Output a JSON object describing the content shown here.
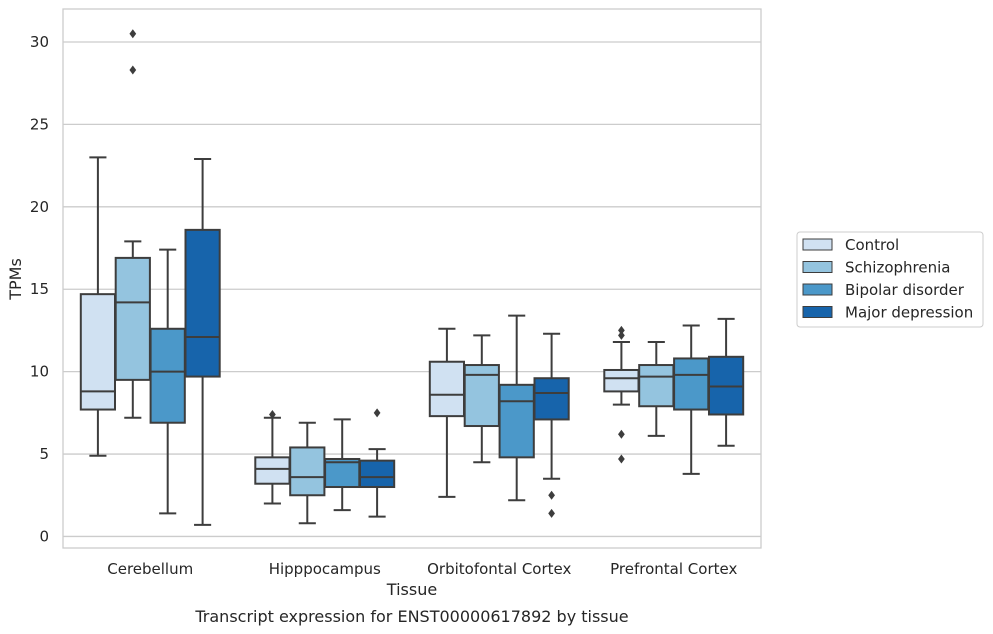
{
  "chart_data": {
    "type": "box",
    "title": "Transcript expression for ENST00000617892 by tissue",
    "xlabel": "Tissue",
    "ylabel": "TPMs",
    "ylim": [
      -0.7,
      32
    ],
    "yticks": [
      0,
      5,
      10,
      15,
      20,
      25,
      30
    ],
    "grid": true,
    "legend_position": "right",
    "categories": [
      "Cerebellum",
      "Hipppocampus",
      "Orbitofontal Cortex",
      "Prefrontal Cortex"
    ],
    "series": [
      {
        "name": "Control",
        "color": "#d0e1f2",
        "boxes": [
          {
            "whislo": 4.9,
            "q1": 7.7,
            "med": 8.8,
            "q3": 14.7,
            "whishi": 23.0,
            "fliers": []
          },
          {
            "whislo": 2.0,
            "q1": 3.2,
            "med": 4.1,
            "q3": 4.8,
            "whishi": 7.2,
            "fliers": [
              7.4
            ]
          },
          {
            "whislo": 2.4,
            "q1": 7.3,
            "med": 8.6,
            "q3": 10.6,
            "whishi": 12.6,
            "fliers": []
          },
          {
            "whislo": 8.0,
            "q1": 8.8,
            "med": 9.6,
            "q3": 10.1,
            "whishi": 11.8,
            "fliers": [
              12.2,
              12.5,
              6.2,
              4.7
            ]
          }
        ]
      },
      {
        "name": "Schizophrenia",
        "color": "#94c4df",
        "boxes": [
          {
            "whislo": 7.2,
            "q1": 9.5,
            "med": 14.2,
            "q3": 16.9,
            "whishi": 17.9,
            "fliers": [
              28.3,
              30.5
            ]
          },
          {
            "whislo": 0.8,
            "q1": 2.5,
            "med": 3.6,
            "q3": 5.4,
            "whishi": 6.9,
            "fliers": []
          },
          {
            "whislo": 4.5,
            "q1": 6.7,
            "med": 9.8,
            "q3": 10.4,
            "whishi": 12.2,
            "fliers": []
          },
          {
            "whislo": 6.1,
            "q1": 7.9,
            "med": 9.7,
            "q3": 10.4,
            "whishi": 11.8,
            "fliers": []
          }
        ]
      },
      {
        "name": "Bipolar disorder",
        "color": "#4b98c9",
        "boxes": [
          {
            "whislo": 1.4,
            "q1": 6.9,
            "med": 10.0,
            "q3": 12.6,
            "whishi": 17.4,
            "fliers": []
          },
          {
            "whislo": 1.6,
            "q1": 3.0,
            "med": 4.5,
            "q3": 4.7,
            "whishi": 7.1,
            "fliers": []
          },
          {
            "whislo": 2.2,
            "q1": 4.8,
            "med": 8.2,
            "q3": 9.2,
            "whishi": 13.4,
            "fliers": []
          },
          {
            "whislo": 3.8,
            "q1": 7.7,
            "med": 9.8,
            "q3": 10.8,
            "whishi": 12.8,
            "fliers": []
          }
        ]
      },
      {
        "name": "Major depression",
        "color": "#1764ab",
        "boxes": [
          {
            "whislo": 0.7,
            "q1": 9.7,
            "med": 12.1,
            "q3": 18.6,
            "whishi": 22.9,
            "fliers": []
          },
          {
            "whislo": 1.2,
            "q1": 3.0,
            "med": 3.6,
            "q3": 4.6,
            "whishi": 5.3,
            "fliers": [
              7.5
            ]
          },
          {
            "whislo": 3.5,
            "q1": 7.1,
            "med": 8.7,
            "q3": 9.6,
            "whishi": 12.3,
            "fliers": [
              2.5,
              1.4
            ]
          },
          {
            "whislo": 5.5,
            "q1": 7.4,
            "med": 9.1,
            "q3": 10.9,
            "whishi": 13.2,
            "fliers": []
          }
        ]
      }
    ]
  }
}
